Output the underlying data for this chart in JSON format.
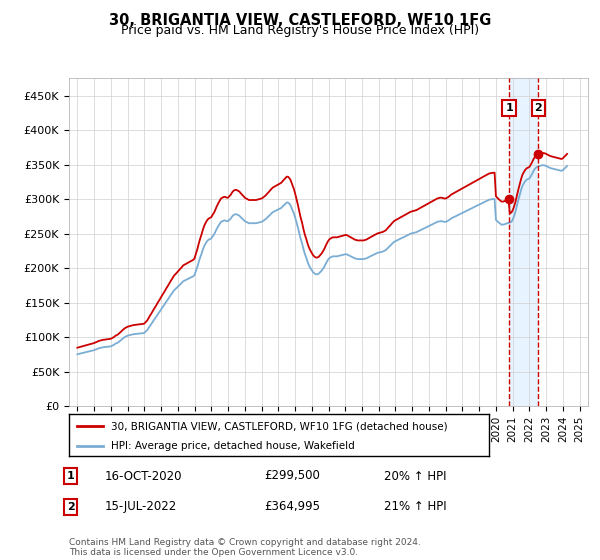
{
  "title": "30, BRIGANTIA VIEW, CASTLEFORD, WF10 1FG",
  "subtitle": "Price paid vs. HM Land Registry's House Price Index (HPI)",
  "ylim": [
    0,
    475000
  ],
  "yticks": [
    0,
    50000,
    100000,
    150000,
    200000,
    250000,
    300000,
    350000,
    400000,
    450000
  ],
  "ytick_labels": [
    "£0",
    "£50K",
    "£100K",
    "£150K",
    "£200K",
    "£250K",
    "£300K",
    "£350K",
    "£400K",
    "£450K"
  ],
  "property_color": "#cc0000",
  "hpi_color": "#7aadd4",
  "shade_color": "#ddeeff",
  "annotation_border_color": "#cc0000",
  "legend_label_property": "30, BRIGANTIA VIEW, CASTLEFORD, WF10 1FG (detached house)",
  "legend_label_hpi": "HPI: Average price, detached house, Wakefield",
  "annotation1_label": "1",
  "annotation1_date": "16-OCT-2020",
  "annotation1_price": "£299,500",
  "annotation1_pct": "20% ↑ HPI",
  "annotation1_year": 2020.79,
  "annotation1_value": 299500,
  "annotation2_label": "2",
  "annotation2_date": "15-JUL-2022",
  "annotation2_price": "£364,995",
  "annotation2_pct": "21% ↑ HPI",
  "annotation2_year": 2022.54,
  "annotation2_value": 364995,
  "footer": "Contains HM Land Registry data © Crown copyright and database right 2024.\nThis data is licensed under the Open Government Licence v3.0.",
  "hpi_years": [
    1995.0,
    1995.08,
    1995.17,
    1995.25,
    1995.33,
    1995.42,
    1995.5,
    1995.58,
    1995.67,
    1995.75,
    1995.83,
    1995.92,
    1996.0,
    1996.08,
    1996.17,
    1996.25,
    1996.33,
    1996.42,
    1996.5,
    1996.58,
    1996.67,
    1996.75,
    1996.83,
    1996.92,
    1997.0,
    1997.08,
    1997.17,
    1997.25,
    1997.33,
    1997.42,
    1997.5,
    1997.58,
    1997.67,
    1997.75,
    1997.83,
    1997.92,
    1998.0,
    1998.08,
    1998.17,
    1998.25,
    1998.33,
    1998.42,
    1998.5,
    1998.58,
    1998.67,
    1998.75,
    1998.83,
    1998.92,
    1999.0,
    1999.08,
    1999.17,
    1999.25,
    1999.33,
    1999.42,
    1999.5,
    1999.58,
    1999.67,
    1999.75,
    1999.83,
    1999.92,
    2000.0,
    2000.08,
    2000.17,
    2000.25,
    2000.33,
    2000.42,
    2000.5,
    2000.58,
    2000.67,
    2000.75,
    2000.83,
    2000.92,
    2001.0,
    2001.08,
    2001.17,
    2001.25,
    2001.33,
    2001.42,
    2001.5,
    2001.58,
    2001.67,
    2001.75,
    2001.83,
    2001.92,
    2002.0,
    2002.08,
    2002.17,
    2002.25,
    2002.33,
    2002.42,
    2002.5,
    2002.58,
    2002.67,
    2002.75,
    2002.83,
    2002.92,
    2003.0,
    2003.08,
    2003.17,
    2003.25,
    2003.33,
    2003.42,
    2003.5,
    2003.58,
    2003.67,
    2003.75,
    2003.83,
    2003.92,
    2004.0,
    2004.08,
    2004.17,
    2004.25,
    2004.33,
    2004.42,
    2004.5,
    2004.58,
    2004.67,
    2004.75,
    2004.83,
    2004.92,
    2005.0,
    2005.08,
    2005.17,
    2005.25,
    2005.33,
    2005.42,
    2005.5,
    2005.58,
    2005.67,
    2005.75,
    2005.83,
    2005.92,
    2006.0,
    2006.08,
    2006.17,
    2006.25,
    2006.33,
    2006.42,
    2006.5,
    2006.58,
    2006.67,
    2006.75,
    2006.83,
    2006.92,
    2007.0,
    2007.08,
    2007.17,
    2007.25,
    2007.33,
    2007.42,
    2007.5,
    2007.58,
    2007.67,
    2007.75,
    2007.83,
    2007.92,
    2008.0,
    2008.08,
    2008.17,
    2008.25,
    2008.33,
    2008.42,
    2008.5,
    2008.58,
    2008.67,
    2008.75,
    2008.83,
    2008.92,
    2009.0,
    2009.08,
    2009.17,
    2009.25,
    2009.33,
    2009.42,
    2009.5,
    2009.58,
    2009.67,
    2009.75,
    2009.83,
    2009.92,
    2010.0,
    2010.08,
    2010.17,
    2010.25,
    2010.33,
    2010.42,
    2010.5,
    2010.58,
    2010.67,
    2010.75,
    2010.83,
    2010.92,
    2011.0,
    2011.08,
    2011.17,
    2011.25,
    2011.33,
    2011.42,
    2011.5,
    2011.58,
    2011.67,
    2011.75,
    2011.83,
    2011.92,
    2012.0,
    2012.08,
    2012.17,
    2012.25,
    2012.33,
    2012.42,
    2012.5,
    2012.58,
    2012.67,
    2012.75,
    2012.83,
    2012.92,
    2013.0,
    2013.08,
    2013.17,
    2013.25,
    2013.33,
    2013.42,
    2013.5,
    2013.58,
    2013.67,
    2013.75,
    2013.83,
    2013.92,
    2014.0,
    2014.08,
    2014.17,
    2014.25,
    2014.33,
    2014.42,
    2014.5,
    2014.58,
    2014.67,
    2014.75,
    2014.83,
    2014.92,
    2015.0,
    2015.08,
    2015.17,
    2015.25,
    2015.33,
    2015.42,
    2015.5,
    2015.58,
    2015.67,
    2015.75,
    2015.83,
    2015.92,
    2016.0,
    2016.08,
    2016.17,
    2016.25,
    2016.33,
    2016.42,
    2016.5,
    2016.58,
    2016.67,
    2016.75,
    2016.83,
    2016.92,
    2017.0,
    2017.08,
    2017.17,
    2017.25,
    2017.33,
    2017.42,
    2017.5,
    2017.58,
    2017.67,
    2017.75,
    2017.83,
    2017.92,
    2018.0,
    2018.08,
    2018.17,
    2018.25,
    2018.33,
    2018.42,
    2018.5,
    2018.58,
    2018.67,
    2018.75,
    2018.83,
    2018.92,
    2019.0,
    2019.08,
    2019.17,
    2019.25,
    2019.33,
    2019.42,
    2019.5,
    2019.58,
    2019.67,
    2019.75,
    2019.83,
    2019.92,
    2020.0,
    2020.08,
    2020.17,
    2020.25,
    2020.33,
    2020.42,
    2020.5,
    2020.58,
    2020.67,
    2020.75,
    2020.83,
    2020.92,
    2021.0,
    2021.08,
    2021.17,
    2021.25,
    2021.33,
    2021.42,
    2021.5,
    2021.58,
    2021.67,
    2021.75,
    2021.83,
    2021.92,
    2022.0,
    2022.08,
    2022.17,
    2022.25,
    2022.33,
    2022.42,
    2022.5,
    2022.58,
    2022.67,
    2022.75,
    2022.83,
    2022.92,
    2023.0,
    2023.08,
    2023.17,
    2023.25,
    2023.33,
    2023.42,
    2023.5,
    2023.58,
    2023.67,
    2023.75,
    2023.83,
    2023.92,
    2024.0,
    2024.08,
    2024.17,
    2024.25
  ],
  "hpi_values": [
    75000,
    75500,
    76000,
    76500,
    77000,
    77500,
    78000,
    78500,
    79000,
    79500,
    80000,
    80500,
    81000,
    81800,
    82500,
    83500,
    84000,
    84500,
    85000,
    85200,
    85500,
    85800,
    86000,
    86200,
    86500,
    87500,
    88500,
    90000,
    91000,
    92000,
    93500,
    95000,
    97000,
    98500,
    100000,
    101000,
    102000,
    102500,
    103000,
    103500,
    104000,
    104200,
    104500,
    104800,
    105000,
    105200,
    105400,
    105600,
    106000,
    108000,
    110000,
    113000,
    116000,
    119000,
    122000,
    125000,
    128000,
    131000,
    134000,
    137000,
    140000,
    143000,
    146000,
    149000,
    152000,
    155000,
    158000,
    161000,
    164000,
    167000,
    169000,
    171000,
    173000,
    175000,
    177000,
    179000,
    181000,
    182000,
    183000,
    184000,
    185000,
    186000,
    187000,
    188000,
    190000,
    196000,
    202000,
    209000,
    215000,
    221000,
    227000,
    232000,
    236000,
    239000,
    241000,
    242000,
    243000,
    246000,
    249000,
    253000,
    257000,
    261000,
    264000,
    267000,
    268000,
    269000,
    269000,
    268000,
    268000,
    270000,
    272000,
    275000,
    277000,
    278000,
    278000,
    277000,
    276000,
    274000,
    272000,
    270000,
    268000,
    267000,
    266000,
    265000,
    265000,
    265000,
    265000,
    265000,
    265000,
    265500,
    266000,
    266500,
    267000,
    268000,
    269500,
    271000,
    273000,
    275000,
    277000,
    279000,
    281000,
    282000,
    283000,
    284000,
    285000,
    286000,
    287000,
    289000,
    291000,
    293000,
    295000,
    295000,
    293000,
    290000,
    285000,
    280000,
    274000,
    267000,
    259000,
    251000,
    243000,
    236000,
    228000,
    221000,
    215000,
    209000,
    204000,
    200000,
    197000,
    194000,
    192000,
    191000,
    191000,
    192000,
    194000,
    196000,
    199000,
    202000,
    206000,
    210000,
    213000,
    215000,
    216000,
    217000,
    217000,
    217000,
    217000,
    217500,
    218000,
    218500,
    219000,
    219500,
    220000,
    220000,
    219000,
    218000,
    217000,
    216000,
    215000,
    214000,
    213500,
    213000,
    213000,
    213000,
    213000,
    213000,
    213500,
    214000,
    215000,
    216000,
    217000,
    218000,
    219000,
    220000,
    221000,
    222000,
    222500,
    223000,
    223500,
    224000,
    225000,
    226000,
    228000,
    230000,
    232000,
    234000,
    236000,
    238000,
    239000,
    240000,
    241000,
    242000,
    243000,
    244000,
    245000,
    246000,
    247000,
    248000,
    249000,
    250000,
    250500,
    251000,
    251500,
    252000,
    253000,
    254000,
    255000,
    256000,
    257000,
    258000,
    259000,
    260000,
    261000,
    262000,
    263000,
    264000,
    265000,
    266000,
    267000,
    267500,
    268000,
    268000,
    267500,
    267000,
    267000,
    268000,
    269000,
    270500,
    272000,
    273000,
    274000,
    275000,
    276000,
    277000,
    278000,
    279000,
    280000,
    281000,
    282000,
    283000,
    284000,
    285000,
    286000,
    287000,
    288000,
    289000,
    290000,
    291000,
    292000,
    293000,
    294000,
    295000,
    296000,
    297000,
    298000,
    299000,
    299500,
    299800,
    300000,
    300200,
    270000,
    268000,
    266000,
    264500,
    263000,
    263000,
    263500,
    264000,
    265000,
    265500,
    266000,
    267000,
    270000,
    275000,
    282000,
    290000,
    298000,
    306000,
    313000,
    319000,
    323000,
    326000,
    328000,
    329000,
    330000,
    333000,
    337000,
    341000,
    344000,
    346000,
    347000,
    348000,
    348500,
    349000,
    349200,
    348800,
    348000,
    347000,
    346000,
    345000,
    344500,
    344000,
    343500,
    343000,
    342500,
    342000,
    341500,
    341000,
    342000,
    344000,
    346000,
    348000
  ],
  "prop_years_full": [
    1995.0,
    1995.08,
    1995.17,
    1995.25,
    1995.33,
    1995.42,
    1995.5,
    1995.58,
    1995.67,
    1995.75,
    1995.83,
    1995.92,
    1996.0,
    1996.08,
    1996.17,
    1996.25,
    1996.33,
    1996.42,
    1996.5,
    1996.58,
    1996.67,
    1996.75,
    1996.83,
    1996.92,
    1997.0,
    1997.08,
    1997.17,
    1997.25,
    1997.33,
    1997.42,
    1997.5,
    1997.58,
    1997.67,
    1997.75,
    1997.83,
    1997.92,
    1998.0,
    1998.08,
    1998.17,
    1998.25,
    1998.33,
    1998.42,
    1998.5,
    1998.58,
    1998.67,
    1998.75,
    1998.83,
    1998.92,
    1999.0,
    1999.08,
    1999.17,
    1999.25,
    1999.33,
    1999.42,
    1999.5,
    1999.58,
    1999.67,
    1999.75,
    1999.83,
    1999.92,
    2000.0,
    2000.08,
    2000.17,
    2000.25,
    2000.33,
    2000.42,
    2000.5,
    2000.58,
    2000.67,
    2000.75,
    2000.83,
    2000.92,
    2001.0,
    2001.08,
    2001.17,
    2001.25,
    2001.33,
    2001.42,
    2001.5,
    2001.58,
    2001.67,
    2001.75,
    2001.83,
    2001.92,
    2002.0,
    2002.08,
    2002.17,
    2002.25,
    2002.33,
    2002.42,
    2002.5,
    2002.58,
    2002.67,
    2002.75,
    2002.83,
    2002.92,
    2003.0,
    2003.08,
    2003.17,
    2003.25,
    2003.33,
    2003.42,
    2003.5,
    2003.58,
    2003.67,
    2003.75,
    2003.83,
    2003.92,
    2004.0,
    2004.08,
    2004.17,
    2004.25,
    2004.33,
    2004.42,
    2004.5,
    2004.58,
    2004.67,
    2004.75,
    2004.83,
    2004.92,
    2005.0,
    2005.08,
    2005.17,
    2005.25,
    2005.33,
    2005.42,
    2005.5,
    2005.58,
    2005.67,
    2005.75,
    2005.83,
    2005.92,
    2006.0,
    2006.08,
    2006.17,
    2006.25,
    2006.33,
    2006.42,
    2006.5,
    2006.58,
    2006.67,
    2006.75,
    2006.83,
    2006.92,
    2007.0,
    2007.08,
    2007.17,
    2007.25,
    2007.33,
    2007.42,
    2007.5,
    2007.58,
    2007.67,
    2007.75,
    2007.83,
    2007.92,
    2008.0,
    2008.08,
    2008.17,
    2008.25,
    2008.33,
    2008.42,
    2008.5,
    2008.58,
    2008.67,
    2008.75,
    2008.83,
    2008.92,
    2009.0,
    2009.08,
    2009.17,
    2009.25,
    2009.33,
    2009.42,
    2009.5,
    2009.58,
    2009.67,
    2009.75,
    2009.83,
    2009.92,
    2010.0,
    2010.08,
    2010.17,
    2010.25,
    2010.33,
    2010.42,
    2010.5,
    2010.58,
    2010.67,
    2010.75,
    2010.83,
    2010.92,
    2011.0,
    2011.08,
    2011.17,
    2011.25,
    2011.33,
    2011.42,
    2011.5,
    2011.58,
    2011.67,
    2011.75,
    2011.83,
    2011.92,
    2012.0,
    2012.08,
    2012.17,
    2012.25,
    2012.33,
    2012.42,
    2012.5,
    2012.58,
    2012.67,
    2012.75,
    2012.83,
    2012.92,
    2013.0,
    2013.08,
    2013.17,
    2013.25,
    2013.33,
    2013.42,
    2013.5,
    2013.58,
    2013.67,
    2013.75,
    2013.83,
    2013.92,
    2014.0,
    2014.08,
    2014.17,
    2014.25,
    2014.33,
    2014.42,
    2014.5,
    2014.58,
    2014.67,
    2014.75,
    2014.83,
    2014.92,
    2015.0,
    2015.08,
    2015.17,
    2015.25,
    2015.33,
    2015.42,
    2015.5,
    2015.58,
    2015.67,
    2015.75,
    2015.83,
    2015.92,
    2016.0,
    2016.08,
    2016.17,
    2016.25,
    2016.33,
    2016.42,
    2016.5,
    2016.58,
    2016.67,
    2016.75,
    2016.83,
    2016.92,
    2017.0,
    2017.08,
    2017.17,
    2017.25,
    2017.33,
    2017.42,
    2017.5,
    2017.58,
    2017.67,
    2017.75,
    2017.83,
    2017.92,
    2018.0,
    2018.08,
    2018.17,
    2018.25,
    2018.33,
    2018.42,
    2018.5,
    2018.58,
    2018.67,
    2018.75,
    2018.83,
    2018.92,
    2019.0,
    2019.08,
    2019.17,
    2019.25,
    2019.33,
    2019.42,
    2019.5,
    2019.58,
    2019.67,
    2019.75,
    2019.83,
    2019.92,
    2020.0,
    2020.08,
    2020.17,
    2020.25,
    2020.33,
    2020.42,
    2020.5,
    2020.58,
    2020.67,
    2020.75,
    2020.83,
    2020.92,
    2021.0,
    2021.08,
    2021.17,
    2021.25,
    2021.33,
    2021.42,
    2021.5,
    2021.58,
    2021.67,
    2021.75,
    2021.83,
    2021.92,
    2022.0,
    2022.08,
    2022.17,
    2022.25,
    2022.33,
    2022.42,
    2022.5,
    2022.58,
    2022.67,
    2022.75,
    2022.83,
    2022.92,
    2023.0,
    2023.08,
    2023.17,
    2023.25,
    2023.33,
    2023.42,
    2023.5,
    2023.58,
    2023.67,
    2023.75,
    2023.83,
    2023.92,
    2024.0,
    2024.08,
    2024.17,
    2024.25
  ],
  "xlim_left": 1994.5,
  "xlim_right": 2025.5,
  "xtick_years": [
    1995,
    1996,
    1997,
    1998,
    1999,
    2000,
    2001,
    2002,
    2003,
    2004,
    2005,
    2006,
    2007,
    2008,
    2009,
    2010,
    2011,
    2012,
    2013,
    2014,
    2015,
    2016,
    2017,
    2018,
    2019,
    2020,
    2021,
    2022,
    2023,
    2024,
    2025
  ],
  "purchase1_hpi_index": 1995.0,
  "purchase1_hpi_value_at_index": 75000,
  "purchase1_price": 90000,
  "purchase2_hpi_index": 2020.79,
  "purchase2_hpi_value_at_index": 299500,
  "purchase2_price": 299500,
  "purchase3_hpi_index": 2022.54,
  "purchase3_hpi_value_at_index": 364995,
  "purchase3_price": 364995
}
